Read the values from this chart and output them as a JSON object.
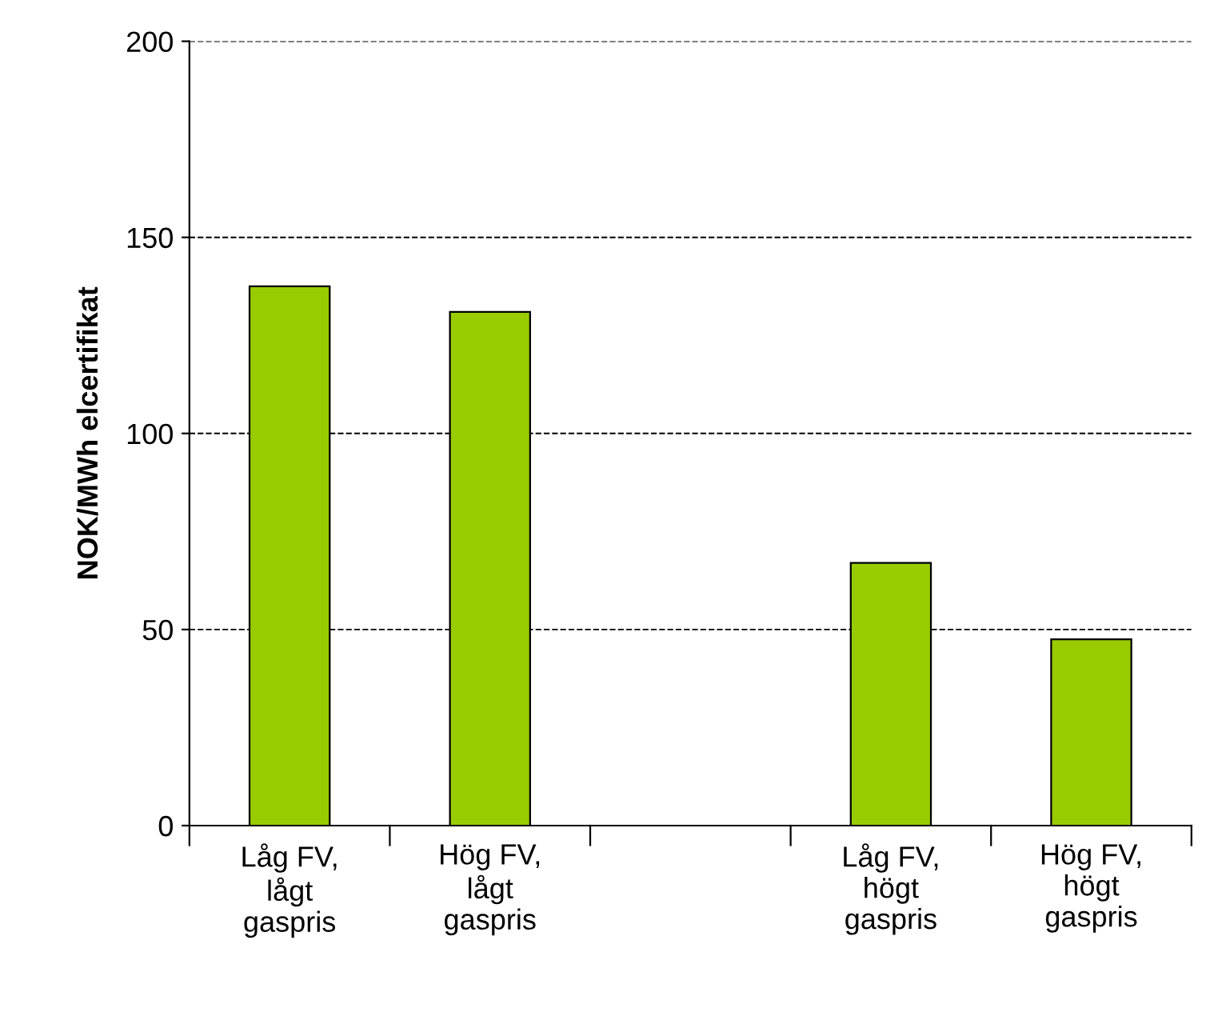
{
  "chart_data": {
    "type": "bar",
    "ylabel": "NOK/MWh elcertifikat",
    "categories": [
      "Låg FV,\nlågt\ngaspris",
      "Hög FV,\nlågt\ngaspris",
      null,
      "Låg FV,\nhögt\ngaspris",
      "Hög FV,\nhögt\ngaspris"
    ],
    "values": [
      137.5,
      131,
      null,
      67,
      47.5
    ],
    "color": "#99cc00",
    "ylim": [
      0,
      200
    ],
    "yticks": [
      0,
      50,
      100,
      150,
      200
    ],
    "grid": "y",
    "line_style": "dashed"
  }
}
